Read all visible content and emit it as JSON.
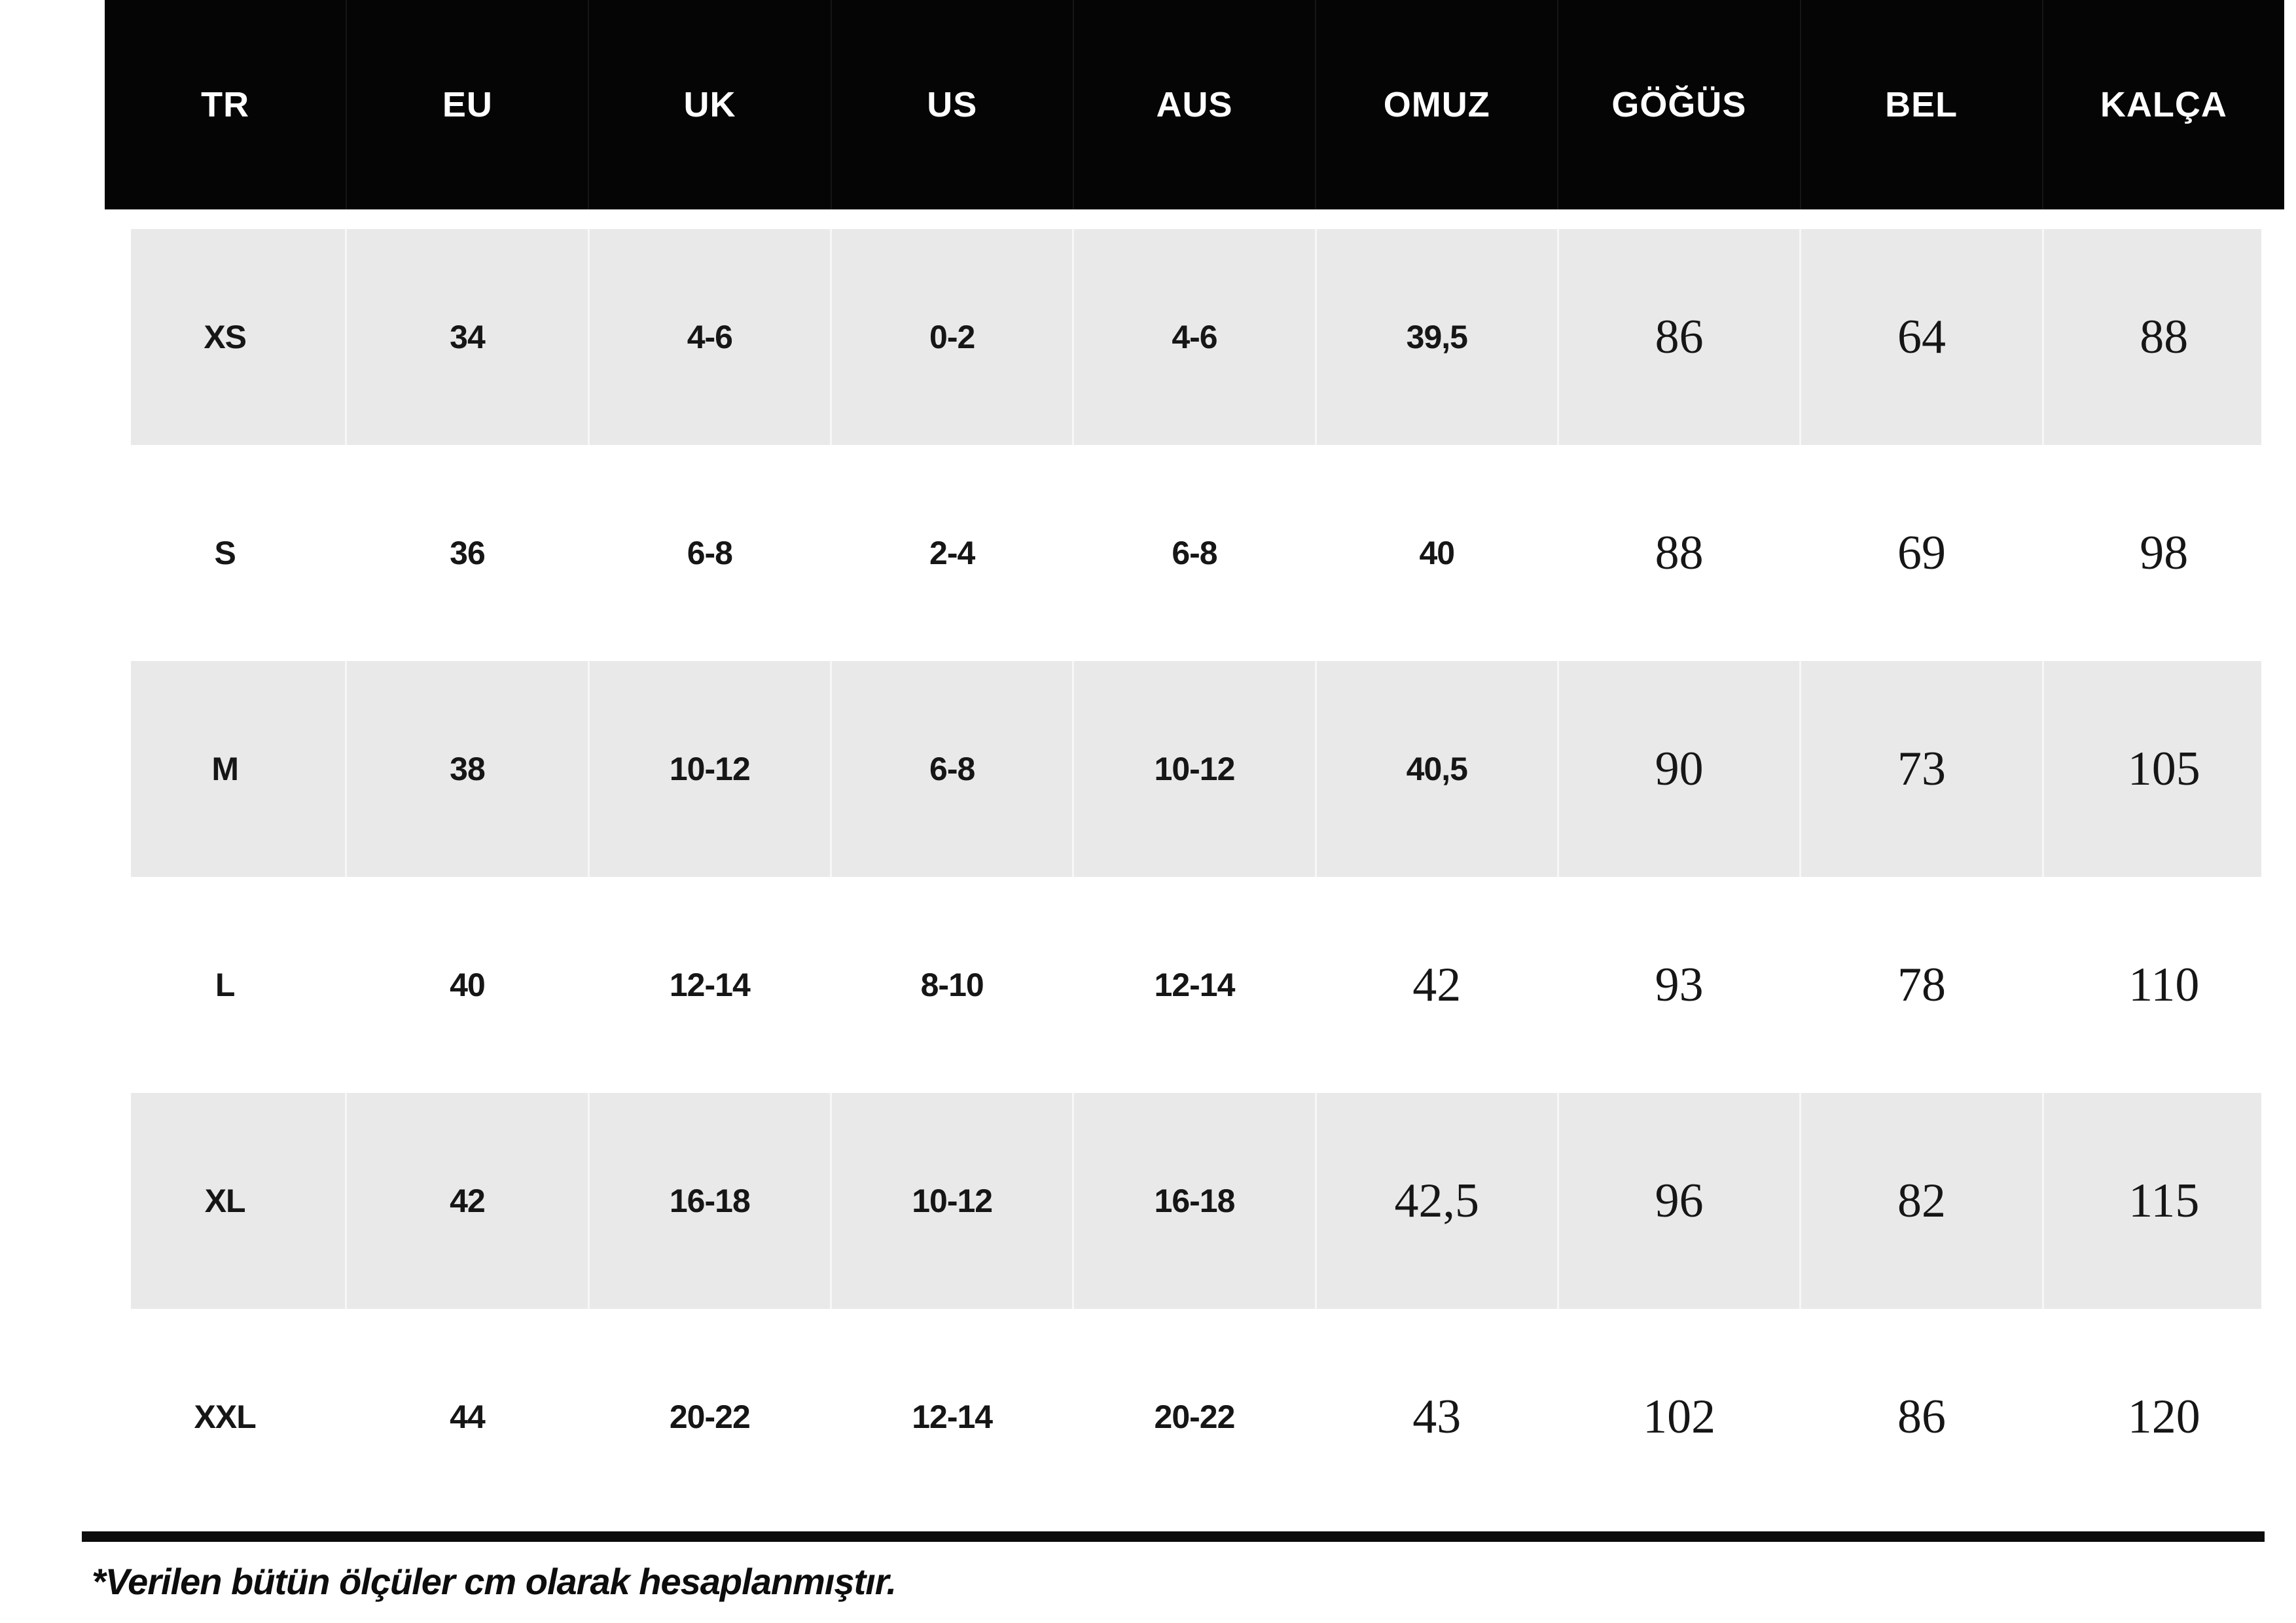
{
  "chart_data": {
    "type": "table",
    "title": "",
    "columns": [
      "TR",
      "EU",
      "UK",
      "US",
      "AUS",
      "OMUZ",
      "GÖĞÜS",
      "BEL",
      "KALÇA"
    ],
    "column_keys": [
      "tr",
      "eu",
      "uk",
      "us",
      "aus",
      "omuz",
      "gogus",
      "bel",
      "kalca"
    ],
    "rows": [
      {
        "key": "xs",
        "cells": [
          "XS",
          "34",
          "4-6",
          "0-2",
          "4-6",
          "39,5",
          "86",
          "64",
          "88"
        ],
        "serif_cells": [
          6,
          7,
          8
        ]
      },
      {
        "key": "s",
        "cells": [
          "S",
          "36",
          "6-8",
          "2-4",
          "6-8",
          "40",
          "88",
          "69",
          "98"
        ],
        "serif_cells": [
          6,
          7,
          8
        ]
      },
      {
        "key": "m",
        "cells": [
          "M",
          "38",
          "10-12",
          "6-8",
          "10-12",
          "40,5",
          "90",
          "73",
          "105"
        ],
        "serif_cells": [
          6,
          7,
          8
        ]
      },
      {
        "key": "l",
        "cells": [
          "L",
          "40",
          "12-14",
          "8-10",
          "12-14",
          "42",
          "93",
          "78",
          "110"
        ],
        "serif_cells": [
          5,
          6,
          7,
          8
        ]
      },
      {
        "key": "xl",
        "cells": [
          "XL",
          "42",
          "16-18",
          "10-12",
          "16-18",
          "42,5",
          "96",
          "82",
          "115"
        ],
        "serif_cells": [
          5,
          6,
          7,
          8
        ]
      },
      {
        "key": "xxl",
        "cells": [
          "XXL",
          "44",
          "20-22",
          "12-14",
          "20-22",
          "43",
          "102",
          "86",
          "120"
        ],
        "serif_cells": [
          5,
          6,
          7,
          8
        ]
      }
    ],
    "footnote": "*Verilen bütün ölçüler cm olarak hesaplanmıştır.",
    "layout": {
      "striped": true,
      "stripe_rows": [
        "xs",
        "m",
        "xl"
      ],
      "stripe_color": "#e9e9e9",
      "header_bg": "#050505",
      "header_text": "#ffffff",
      "grid": "none",
      "units": "cm"
    }
  }
}
